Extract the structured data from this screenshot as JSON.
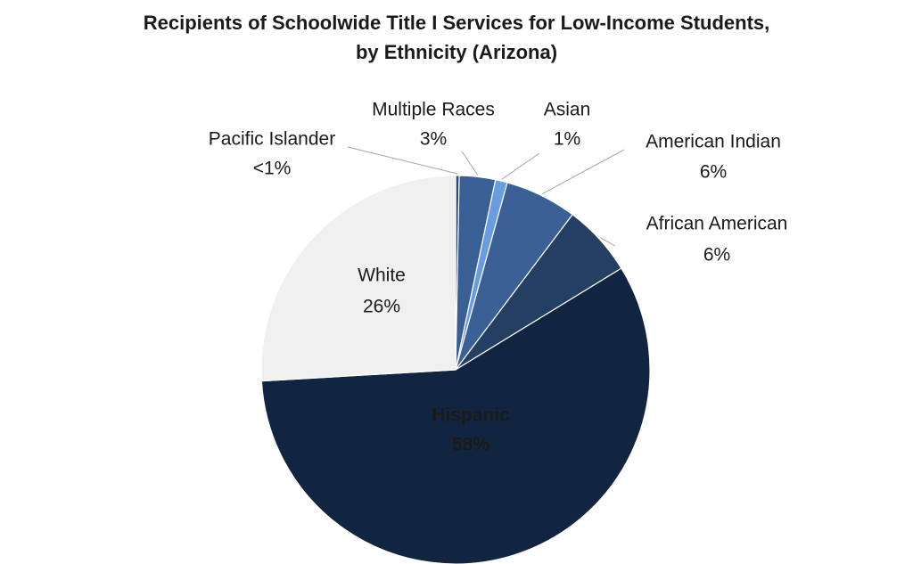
{
  "chart_data": {
    "type": "pie",
    "title": [
      "Recipients of Schoolwide Title I Services for Low-Income Students,",
      "by Ethnicity (Arizona)"
    ],
    "categories": [
      "Pacific Islander",
      "Multiple Races",
      "Asian",
      "American Indian",
      "African American",
      "Hispanic",
      "White"
    ],
    "values": [
      0.3,
      3,
      1,
      6,
      6,
      58,
      26
    ],
    "value_labels": [
      "<1%",
      "3%",
      "1%",
      "6%",
      "6%",
      "58%",
      "26%"
    ],
    "colors": [
      "#2b4a78",
      "#3a5f95",
      "#6a9de0",
      "#3a6096",
      "#253f63",
      "#122540",
      "#f0f0f0"
    ]
  }
}
